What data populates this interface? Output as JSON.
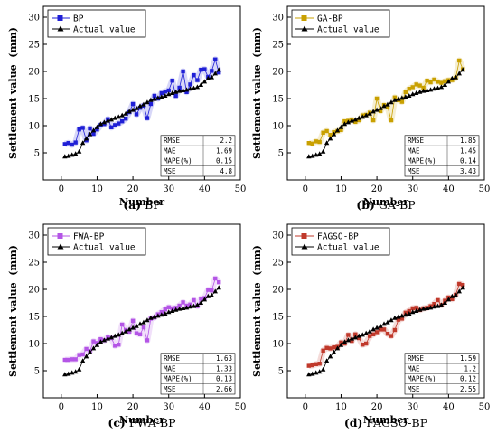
{
  "chart_data": [
    {
      "type": "line",
      "panel_letter": "(a)",
      "model": "BP",
      "xlabel": "Number",
      "ylabel": "Settlement value  (mm)",
      "xlim": [
        -5,
        50
      ],
      "ylim": [
        0,
        32
      ],
      "xticks": [
        0,
        10,
        20,
        30,
        40,
        50
      ],
      "yticks": [
        5,
        10,
        15,
        20,
        25,
        30
      ],
      "legend_position": "top-left",
      "x": [
        1,
        2,
        3,
        4,
        5,
        6,
        7,
        8,
        9,
        10,
        11,
        12,
        13,
        14,
        15,
        16,
        17,
        18,
        19,
        20,
        21,
        22,
        23,
        24,
        25,
        26,
        27,
        28,
        29,
        30,
        31,
        32,
        33,
        34,
        35,
        36,
        37,
        38,
        39,
        40,
        41,
        42,
        43,
        44
      ],
      "series": [
        {
          "name": "BP",
          "color": "#1f1fd6",
          "marker": "square",
          "values": [
            6.6,
            6.8,
            6.5,
            6.9,
            9.3,
            9.6,
            7.3,
            9.5,
            8.5,
            9.3,
            10.1,
            10.3,
            11.2,
            9.7,
            10.1,
            10.4,
            10.8,
            11.3,
            12.5,
            14.0,
            12.1,
            13.3,
            13.7,
            11.4,
            14.0,
            15.5,
            15.0,
            16.0,
            16.3,
            16.5,
            18.3,
            15.5,
            17.0,
            20.0,
            16.2,
            17.6,
            19.3,
            18.4,
            20.3,
            20.4,
            19.0,
            20.1,
            22.2,
            19.8
          ]
        },
        {
          "name": "Actual value",
          "color": "#000000",
          "marker": "triangle",
          "values": [
            4.3,
            4.4,
            4.6,
            4.8,
            5.2,
            6.8,
            7.6,
            8.4,
            9.1,
            9.7,
            10.3,
            10.6,
            10.9,
            11.1,
            11.4,
            11.6,
            11.9,
            12.2,
            12.6,
            12.9,
            13.2,
            13.6,
            13.9,
            14.3,
            14.7,
            14.9,
            15.1,
            15.3,
            15.5,
            15.8,
            16.0,
            16.2,
            16.4,
            16.5,
            16.6,
            16.8,
            16.9,
            17.1,
            17.5,
            18.1,
            18.7,
            18.9,
            19.6,
            20.3
          ]
        }
      ],
      "metrics": [
        [
          "RMSE",
          "2.2"
        ],
        [
          "MAE",
          "1.69"
        ],
        [
          "MAPE(%)",
          "0.15"
        ],
        [
          "MSE",
          "4.8"
        ]
      ]
    },
    {
      "type": "line",
      "panel_letter": "(b)",
      "model": "GA-BP",
      "xlabel": "Number",
      "ylabel": "Settlement value  (mm)",
      "xlim": [
        -5,
        50
      ],
      "ylim": [
        0,
        32
      ],
      "xticks": [
        0,
        10,
        20,
        30,
        40,
        50
      ],
      "yticks": [
        5,
        10,
        15,
        20,
        25,
        30
      ],
      "legend_position": "top-left",
      "x": [
        1,
        2,
        3,
        4,
        5,
        6,
        7,
        8,
        9,
        10,
        11,
        12,
        13,
        14,
        15,
        16,
        17,
        18,
        19,
        20,
        21,
        22,
        23,
        24,
        25,
        26,
        27,
        28,
        29,
        30,
        31,
        32,
        33,
        34,
        35,
        36,
        37,
        38,
        39,
        40,
        41,
        42,
        43,
        44
      ],
      "series": [
        {
          "name": "GA-BP",
          "color": "#c9a000",
          "marker": "square",
          "values": [
            6.8,
            6.7,
            7.1,
            7.0,
            8.7,
            9.0,
            8.3,
            8.8,
            9.0,
            9.2,
            10.8,
            10.9,
            11.1,
            10.7,
            11.0,
            11.9,
            12.0,
            12.4,
            11.0,
            15.0,
            12.7,
            13.8,
            13.5,
            11.0,
            15.2,
            14.7,
            14.4,
            16.2,
            16.8,
            17.1,
            17.6,
            17.4,
            17.0,
            18.3,
            18.0,
            18.5,
            18.1,
            17.9,
            18.2,
            18.4,
            18.4,
            18.8,
            22.0,
            20.4
          ]
        },
        {
          "name": "Actual value",
          "color": "#000000",
          "marker": "triangle",
          "values": [
            4.3,
            4.4,
            4.6,
            4.8,
            5.2,
            6.8,
            7.6,
            8.4,
            9.1,
            9.7,
            10.3,
            10.6,
            10.9,
            11.1,
            11.4,
            11.6,
            11.9,
            12.2,
            12.6,
            12.9,
            13.2,
            13.6,
            13.9,
            14.3,
            14.7,
            14.9,
            15.1,
            15.3,
            15.5,
            15.8,
            16.0,
            16.2,
            16.4,
            16.5,
            16.6,
            16.8,
            16.9,
            17.1,
            17.5,
            18.1,
            18.7,
            18.9,
            19.6,
            20.3
          ]
        }
      ],
      "metrics": [
        [
          "RMSE",
          "1.85"
        ],
        [
          "MAE",
          "1.45"
        ],
        [
          "MAPE(%)",
          "0.14"
        ],
        [
          "MSE",
          "3.43"
        ]
      ]
    },
    {
      "type": "line",
      "panel_letter": "(c)",
      "model": "FWA-BP",
      "xlabel": "Number",
      "ylabel": "Settlement value  (mm)",
      "xlim": [
        -5,
        50
      ],
      "ylim": [
        0,
        32
      ],
      "xticks": [
        0,
        10,
        20,
        30,
        40,
        50
      ],
      "yticks": [
        5,
        10,
        15,
        20,
        25,
        30
      ],
      "legend_position": "top-left",
      "x": [
        1,
        2,
        3,
        4,
        5,
        6,
        7,
        8,
        9,
        10,
        11,
        12,
        13,
        14,
        15,
        16,
        17,
        18,
        19,
        20,
        21,
        22,
        23,
        24,
        25,
        26,
        27,
        28,
        29,
        30,
        31,
        32,
        33,
        34,
        35,
        36,
        37,
        38,
        39,
        40,
        41,
        42,
        43,
        44
      ],
      "series": [
        {
          "name": "FWA-BP",
          "color": "#b455e6",
          "marker": "square",
          "values": [
            7.0,
            7.0,
            7.1,
            7.1,
            7.9,
            8.0,
            9.0,
            8.6,
            10.4,
            10.1,
            10.8,
            10.6,
            11.2,
            11.0,
            9.6,
            9.8,
            13.5,
            12.5,
            12.2,
            14.2,
            11.9,
            11.7,
            13.0,
            10.6,
            14.6,
            14.8,
            15.4,
            15.8,
            16.3,
            16.7,
            16.5,
            16.6,
            17.0,
            17.6,
            17.0,
            17.2,
            18.0,
            16.9,
            18.3,
            18.4,
            19.9,
            19.8,
            22.0,
            21.3
          ]
        },
        {
          "name": "Actual value",
          "color": "#000000",
          "marker": "triangle",
          "values": [
            4.3,
            4.4,
            4.6,
            4.8,
            5.2,
            6.8,
            7.6,
            8.4,
            9.1,
            9.7,
            10.3,
            10.6,
            10.9,
            11.1,
            11.4,
            11.6,
            11.9,
            12.2,
            12.6,
            12.9,
            13.2,
            13.6,
            13.9,
            14.3,
            14.7,
            14.9,
            15.1,
            15.3,
            15.5,
            15.8,
            16.0,
            16.2,
            16.4,
            16.5,
            16.6,
            16.8,
            16.9,
            17.1,
            17.5,
            18.1,
            18.7,
            18.9,
            19.6,
            20.3
          ]
        }
      ],
      "metrics": [
        [
          "RMSE",
          "1.63"
        ],
        [
          "MAE",
          "1.33"
        ],
        [
          "MAPE(%)",
          "0.13"
        ],
        [
          "MSE",
          "2.66"
        ]
      ]
    },
    {
      "type": "line",
      "panel_letter": "(d)",
      "model": "FAGSO-BP",
      "xlabel": "Number",
      "ylabel": "Settlement value  (mm)",
      "xlim": [
        -5,
        50
      ],
      "ylim": [
        0,
        32
      ],
      "xticks": [
        0,
        10,
        20,
        30,
        40,
        50
      ],
      "yticks": [
        5,
        10,
        15,
        20,
        25,
        30
      ],
      "legend_position": "top-left",
      "x": [
        1,
        2,
        3,
        4,
        5,
        6,
        7,
        8,
        9,
        10,
        11,
        12,
        13,
        14,
        15,
        16,
        17,
        18,
        19,
        20,
        21,
        22,
        23,
        24,
        25,
        26,
        27,
        28,
        29,
        30,
        31,
        32,
        33,
        34,
        35,
        36,
        37,
        38,
        39,
        40,
        41,
        42,
        43,
        44
      ],
      "series": [
        {
          "name": "FAGSO-BP",
          "color": "#c0392b",
          "marker": "square",
          "values": [
            5.9,
            6.0,
            6.2,
            6.3,
            8.7,
            9.2,
            9.1,
            9.3,
            9.4,
            10.2,
            10.0,
            11.6,
            10.5,
            11.7,
            11.0,
            9.8,
            10.0,
            11.4,
            11.7,
            12.1,
            12.6,
            12.6,
            11.8,
            11.4,
            12.5,
            14.4,
            14.6,
            15.7,
            16.0,
            16.5,
            16.6,
            16.2,
            16.5,
            16.6,
            16.9,
            17.3,
            18.0,
            17.1,
            17.9,
            18.5,
            18.2,
            19.0,
            21.0,
            20.8
          ]
        },
        {
          "name": "Actual value",
          "color": "#000000",
          "marker": "triangle",
          "values": [
            4.3,
            4.4,
            4.6,
            4.8,
            5.2,
            6.8,
            7.6,
            8.4,
            9.1,
            9.7,
            10.3,
            10.6,
            10.9,
            11.1,
            11.4,
            11.6,
            11.9,
            12.2,
            12.6,
            12.9,
            13.2,
            13.6,
            13.9,
            14.3,
            14.7,
            14.9,
            15.1,
            15.3,
            15.5,
            15.8,
            16.0,
            16.2,
            16.4,
            16.5,
            16.6,
            16.8,
            16.9,
            17.1,
            17.5,
            18.1,
            18.7,
            18.9,
            19.6,
            20.3
          ]
        }
      ],
      "metrics": [
        [
          "RMSE",
          "1.59"
        ],
        [
          "MAE",
          "1.2"
        ],
        [
          "MAPE(%)",
          "0.12"
        ],
        [
          "MSE",
          "2.55"
        ]
      ]
    }
  ]
}
